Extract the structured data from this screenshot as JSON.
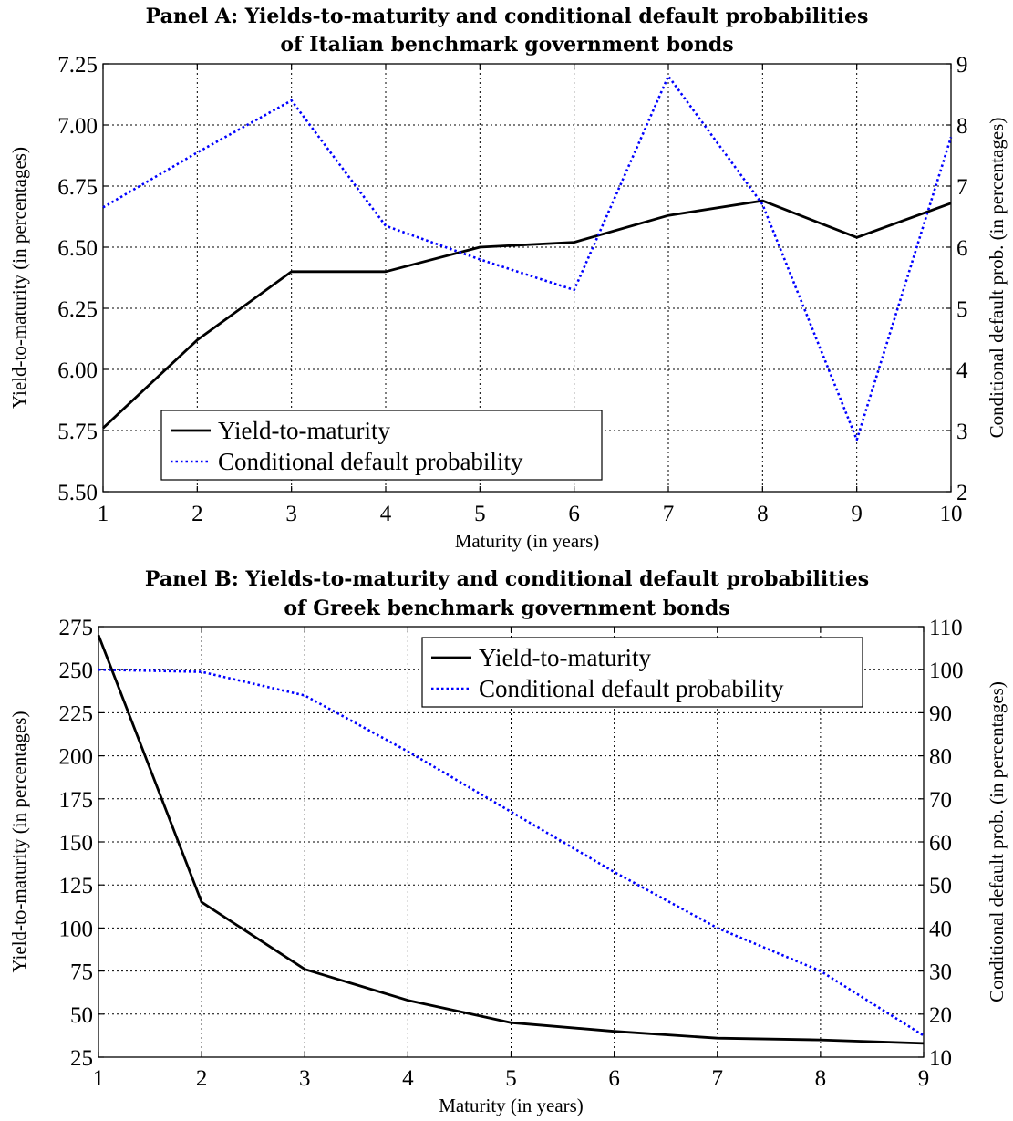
{
  "chart_data": [
    {
      "type": "line",
      "title": [
        "Panel A: Yields-to-maturity and conditional default probabilities",
        "of Italian benchmark government bonds"
      ],
      "xlabel": "Maturity (in years)",
      "ylabel": "Yield-to-maturity (in percentages)",
      "y2label": "Conditional default prob. (in percentages)",
      "x": [
        1,
        2,
        3,
        4,
        5,
        6,
        7,
        8,
        9,
        10
      ],
      "xlim": [
        1,
        10
      ],
      "xticks": [
        1,
        2,
        3,
        4,
        5,
        6,
        7,
        8,
        9,
        10
      ],
      "ylim": [
        5.5,
        7.25
      ],
      "yticks": [
        "5.50",
        "5.75",
        "6.00",
        "6.25",
        "6.50",
        "6.75",
        "7.00",
        "7.25"
      ],
      "y2lim": [
        2,
        9
      ],
      "y2ticks": [
        2,
        3,
        4,
        5,
        6,
        7,
        8,
        9
      ],
      "grid": true,
      "legend_position": "bottom-left",
      "series": [
        {
          "name": "Yield-to-maturity",
          "axis": "left",
          "style": "solid",
          "color": "#000000",
          "values": [
            5.76,
            6.12,
            6.4,
            6.4,
            6.5,
            6.52,
            6.63,
            6.69,
            6.54,
            6.68
          ]
        },
        {
          "name": "Conditional default probability",
          "axis": "right",
          "style": "dotted",
          "color": "#0000ff",
          "values": [
            6.65,
            7.55,
            8.4,
            6.35,
            5.8,
            5.3,
            8.8,
            6.7,
            2.85,
            7.8
          ]
        }
      ]
    },
    {
      "type": "line",
      "title": [
        "Panel B: Yields-to-maturity and conditional default probabilities",
        "of Greek benchmark government bonds"
      ],
      "xlabel": "Maturity (in years)",
      "ylabel": "Yield-to-maturity (in percentages)",
      "y2label": "Conditional default prob. (in percentages)",
      "x": [
        1,
        2,
        3,
        4,
        5,
        6,
        7,
        8,
        9
      ],
      "xlim": [
        1,
        9
      ],
      "xticks": [
        1,
        2,
        3,
        4,
        5,
        6,
        7,
        8,
        9
      ],
      "ylim": [
        25,
        275
      ],
      "yticks": [
        "25",
        "50",
        "75",
        "100",
        "125",
        "150",
        "175",
        "200",
        "225",
        "250",
        "275"
      ],
      "y2lim": [
        10,
        110
      ],
      "y2ticks": [
        10,
        20,
        30,
        40,
        50,
        60,
        70,
        80,
        90,
        100,
        110
      ],
      "grid": true,
      "legend_position": "top-right",
      "series": [
        {
          "name": "Yield-to-maturity",
          "axis": "left",
          "style": "solid",
          "color": "#000000",
          "values": [
            270,
            115,
            76,
            58,
            45,
            40,
            36,
            35,
            33
          ]
        },
        {
          "name": "Conditional default probability",
          "axis": "right",
          "style": "dotted",
          "color": "#0000ff",
          "values": [
            100,
            99.5,
            94,
            81,
            67,
            53,
            40,
            30,
            15
          ]
        }
      ]
    }
  ]
}
